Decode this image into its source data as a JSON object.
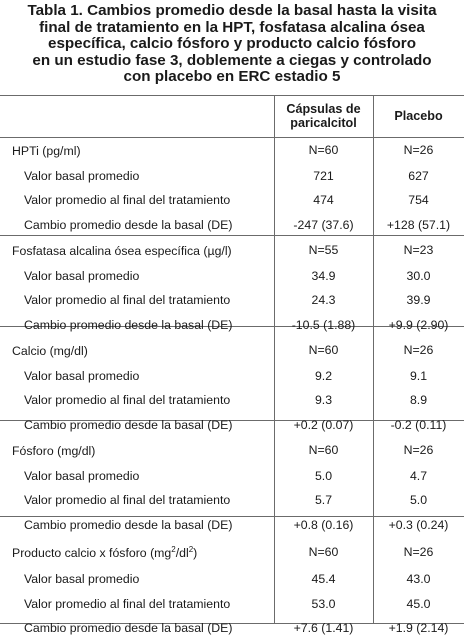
{
  "title_lines": [
    "Tabla 1. Cambios promedio desde la basal hasta la visita",
    "final de tratamiento en la HPT, fosfatasa alcalina ósea",
    "específica, calcio fósforo y producto calcio fósforo",
    "en un estudio fase 3, doblemente a ciegas y controlado",
    "con placebo en ERC estadio 5"
  ],
  "headers": {
    "col1_line1": "Cápsulas de",
    "col1_line2": "paricalcitol",
    "col2": "Placebo"
  },
  "sections": [
    {
      "name": "HPTi (pg/ml)",
      "n": [
        "N=60",
        "N=26"
      ],
      "rows": [
        {
          "label": "Valor basal promedio",
          "v": [
            "721",
            "627"
          ]
        },
        {
          "label": "Valor promedio al final del tratamiento",
          "v": [
            "474",
            "754"
          ]
        },
        {
          "label": "Cambio promedio desde la basal (DE)",
          "v": [
            "-247 (37.6)",
            "+128 (57.1)"
          ]
        }
      ]
    },
    {
      "name": "Fosfatasa alcalina ósea específica (µg/l)",
      "n": [
        "N=55",
        "N=23"
      ],
      "rows": [
        {
          "label": "Valor basal promedio",
          "v": [
            "34.9",
            "30.0"
          ]
        },
        {
          "label": "Valor promedio al final del tratamiento",
          "v": [
            "24.3",
            "39.9"
          ]
        },
        {
          "label": "Cambio promedio desde la basal (DE)",
          "v": [
            "-10.5 (1.88)",
            "+9.9 (2.90)"
          ]
        }
      ]
    },
    {
      "name": "Calcio (mg/dl)",
      "n": [
        "N=60",
        "N=26"
      ],
      "rows": [
        {
          "label": "Valor basal promedio",
          "v": [
            "9.2",
            "9.1"
          ]
        },
        {
          "label": "Valor promedio al final del tratamiento",
          "v": [
            "9.3",
            "8.9"
          ]
        },
        {
          "label": "Cambio promedio desde la basal (DE)",
          "v": [
            "+0.2 (0.07)",
            "-0.2 (0.11)"
          ]
        }
      ]
    },
    {
      "name": "Fósforo (mg/dl)",
      "n": [
        "N=60",
        "N=26"
      ],
      "rows": [
        {
          "label": "Valor basal promedio",
          "v": [
            "5.0",
            "4.7"
          ]
        },
        {
          "label": "Valor promedio al final del tratamiento",
          "v": [
            "5.7",
            "5.0"
          ]
        },
        {
          "label": "Cambio promedio desde la basal (DE)",
          "v": [
            "+0.8 (0.16)",
            "+0.3 (0.24)"
          ]
        }
      ]
    },
    {
      "name_main": "Producto calcio x fósforo (mg",
      "name_sup1": "2",
      "name_mid": "/dl",
      "name_sup2": "2",
      "name_end": ")",
      "n": [
        "N=60",
        "N=26"
      ],
      "rows": [
        {
          "label": "Valor basal promedio",
          "v": [
            "45.4",
            "43.0"
          ]
        },
        {
          "label": "Valor promedio al final del tratamiento",
          "v": [
            "53.0",
            "45.0"
          ]
        },
        {
          "label": "Cambio promedio desde la basal (DE)",
          "v": [
            "+7.6 (1.41)",
            "+1.9 (2.14)"
          ]
        }
      ]
    }
  ]
}
